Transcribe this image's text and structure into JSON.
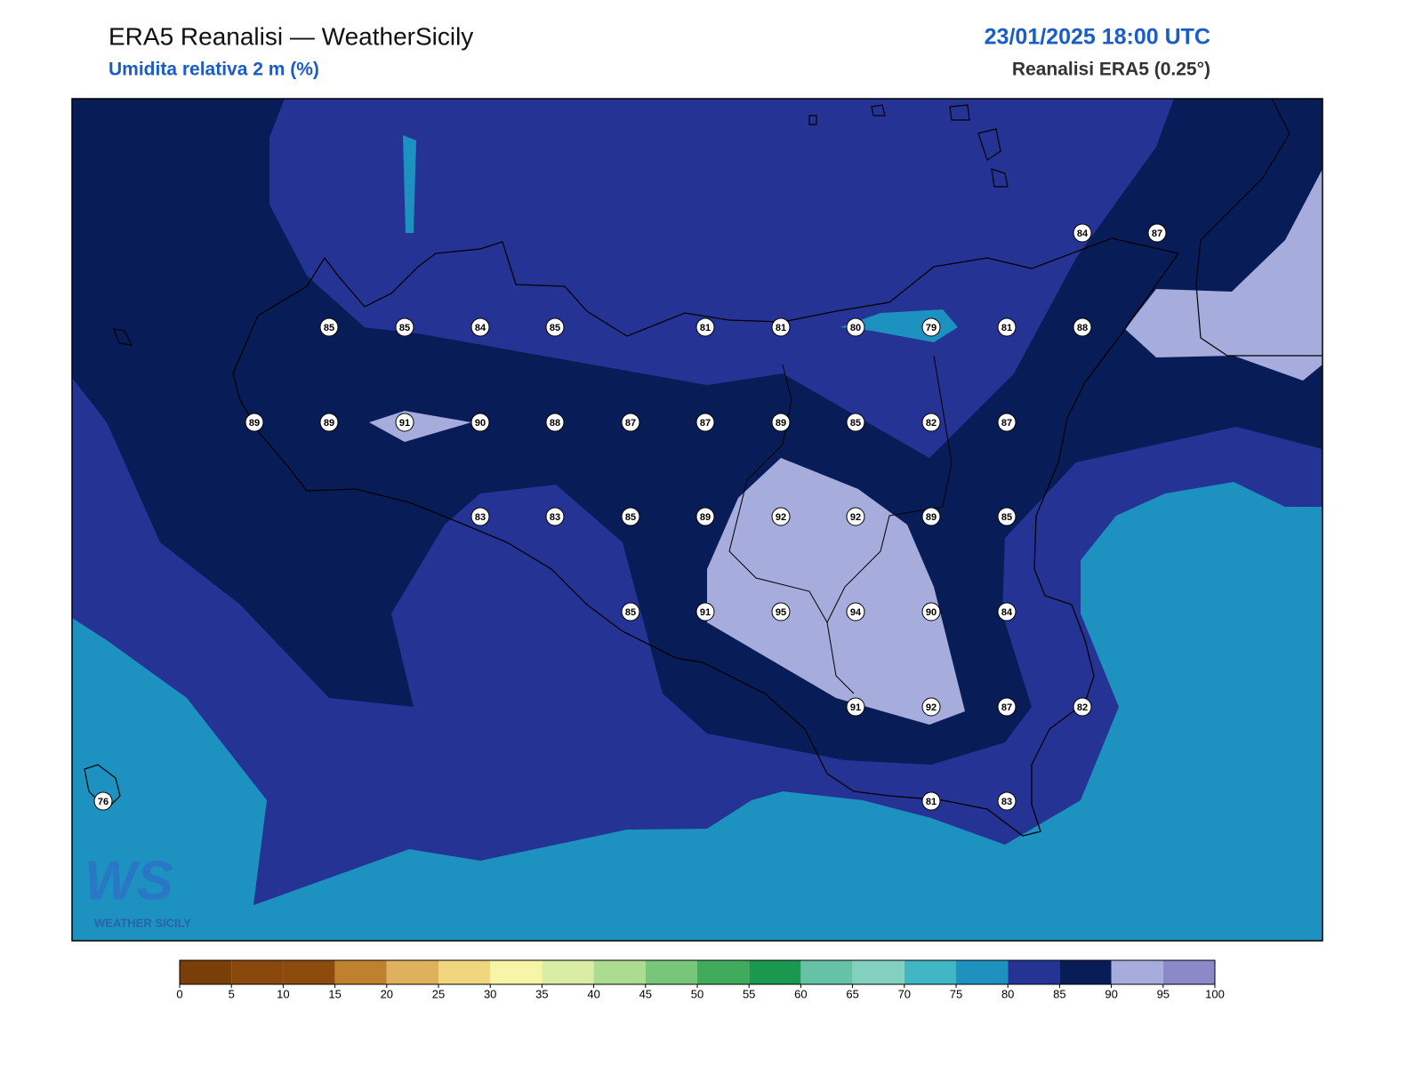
{
  "header": {
    "title": "ERA5 Reanalisi — WeatherSicily",
    "subtitle": "Umidita relativa 2 m (%)",
    "datetime": "23/01/2025 18:00 UTC",
    "source": "Reanalisi ERA5 (0.25°)"
  },
  "map": {
    "station_values": [
      84,
      87,
      85,
      85,
      84,
      85,
      81,
      81,
      80,
      79,
      81,
      88,
      89,
      89,
      91,
      90,
      88,
      87,
      87,
      89,
      85,
      82,
      87,
      83,
      83,
      85,
      89,
      92,
      92,
      89,
      85,
      85,
      91,
      95,
      94,
      90,
      84,
      91,
      92,
      87,
      82,
      76,
      81,
      83
    ]
  },
  "colorbar": {
    "ticks": [
      0,
      5,
      10,
      15,
      20,
      25,
      30,
      35,
      40,
      45,
      50,
      55,
      60,
      65,
      70,
      75,
      80,
      85,
      90,
      95,
      100
    ],
    "colors": [
      "#7a3f08",
      "#8a480c",
      "#8c4a0d",
      "#bf812d",
      "#dfb15c",
      "#f0d67e",
      "#f7f6a8",
      "#d9eea4",
      "#acdc8f",
      "#78c679",
      "#41ab5d",
      "#1a9850",
      "#66c2a4",
      "#82d0c0",
      "#41b6c4",
      "#1d91c0",
      "#253494",
      "#081d58",
      "#a6acdc",
      "#8c89c9"
    ]
  },
  "logo": {
    "mark": "WS",
    "text": "WEATHER SICILY"
  }
}
